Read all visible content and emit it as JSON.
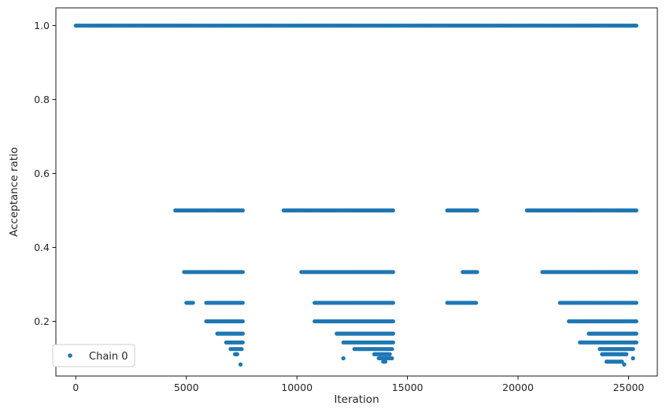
{
  "chart_data": {
    "type": "scatter",
    "title": "",
    "xlabel": "Iteration",
    "ylabel": "Acceptance ratio",
    "xlim": [
      -900,
      26300
    ],
    "ylim": [
      0.052,
      1.048
    ],
    "xticks": [
      0,
      5000,
      10000,
      15000,
      20000,
      25000
    ],
    "yticks": [
      0.2,
      0.4,
      0.6,
      0.8,
      1.0
    ],
    "xtick_labels": [
      "0",
      "5000",
      "10000",
      "15000",
      "20000",
      "25000"
    ],
    "ytick_labels": [
      "0.2",
      "0.4",
      "0.6",
      "0.8",
      "1.0"
    ],
    "grid": false,
    "legend_position": "lower-left",
    "color": "#1f77b4",
    "series": [
      {
        "name": "Chain 0",
        "description": "Dense sampled points; acceptance ratio takes discrete values 1, 1/2, 1/3, 1/4, 1/5, 1/6, 1/7, 1/8, 1/9, 1/10, 1/11, 1/12",
        "segments": [
          {
            "y": 1.0,
            "x": [
              [
                0,
                25350
              ]
            ]
          },
          {
            "y": 0.5,
            "x": [
              [
                4500,
                7550
              ],
              [
                9400,
                14350
              ],
              [
                16800,
                18150
              ],
              [
                20400,
                25350
              ]
            ]
          },
          {
            "y": 0.3333,
            "x": [
              [
                4900,
                7550
              ],
              [
                10200,
                14350
              ],
              [
                17500,
                18150
              ],
              [
                21100,
                25350
              ]
            ]
          },
          {
            "y": 0.25,
            "x": [
              [
                5000,
                5300
              ],
              [
                5900,
                7550
              ],
              [
                10800,
                14350
              ],
              [
                16800,
                18100
              ],
              [
                21900,
                25350
              ]
            ]
          },
          {
            "y": 0.2,
            "x": [
              [
                5900,
                7550
              ],
              [
                10800,
                14350
              ],
              [
                22300,
                25350
              ]
            ]
          },
          {
            "y": 0.1667,
            "x": [
              [
                6400,
                7550
              ],
              [
                11800,
                14350
              ],
              [
                23200,
                25350
              ]
            ]
          },
          {
            "y": 0.1429,
            "x": [
              [
                6800,
                7550
              ],
              [
                12100,
                14350
              ],
              [
                22800,
                25350
              ]
            ]
          },
          {
            "y": 0.125,
            "x": [
              [
                7000,
                7500
              ],
              [
                12600,
                14300
              ],
              [
                23700,
                25200
              ]
            ]
          },
          {
            "y": 0.1111,
            "x": [
              [
                7200,
                7300
              ],
              [
                13500,
                14200
              ],
              [
                23800,
                24900
              ]
            ]
          },
          {
            "y": 0.1,
            "x": [
              [
                12100,
                12100
              ],
              [
                13700,
                14300
              ],
              [
                25200,
                25200
              ]
            ]
          },
          {
            "y": 0.0909,
            "x": [
              [
                13900,
                14000
              ],
              [
                24000,
                24700
              ]
            ]
          },
          {
            "y": 0.0833,
            "x": [
              [
                7450,
                7450
              ],
              [
                24800,
                24800
              ]
            ]
          }
        ]
      }
    ]
  }
}
